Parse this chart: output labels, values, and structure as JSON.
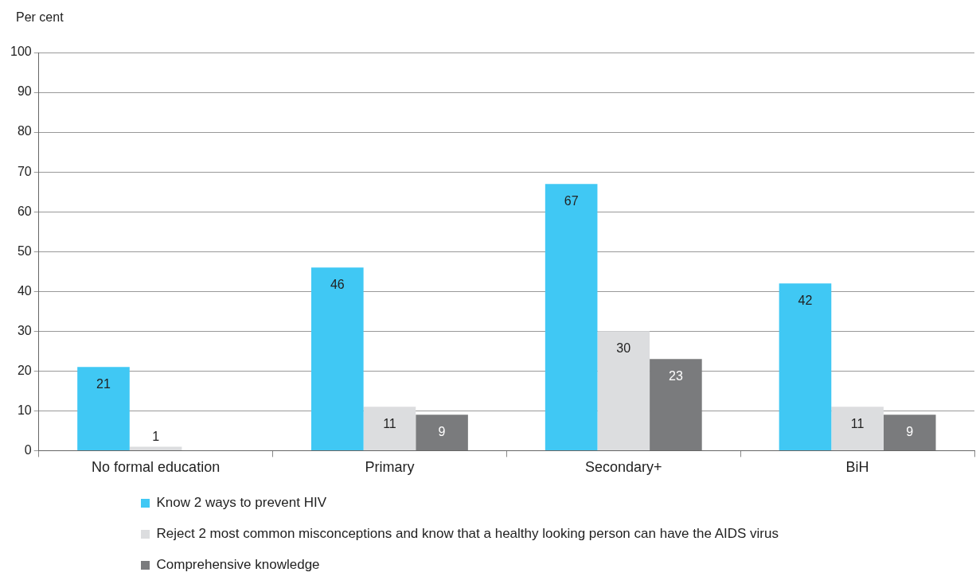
{
  "chart_data": {
    "type": "bar",
    "ylabel": "Per cent",
    "categories": [
      "No formal education",
      "Primary",
      "Secondary+",
      "BiH"
    ],
    "series": [
      {
        "name": "Know 2 ways to prevent HIV",
        "color": "#40c8f4",
        "values": [
          21,
          46,
          67,
          42
        ]
      },
      {
        "name": "Reject 2 most common misconceptions and know that a healthy looking person can have the AIDS virus",
        "color": "#dcdddf",
        "values": [
          1,
          11,
          30,
          11
        ]
      },
      {
        "name": "Comprehensive knowledge",
        "color": "#7a7b7d",
        "values": [
          null,
          9,
          23,
          9
        ]
      }
    ],
    "ylim": [
      0,
      100
    ],
    "yticks": [
      0,
      10,
      20,
      30,
      40,
      50,
      60,
      70,
      80,
      90,
      100
    ],
    "grid": "y",
    "legend": "bottom",
    "data_labels": true
  }
}
